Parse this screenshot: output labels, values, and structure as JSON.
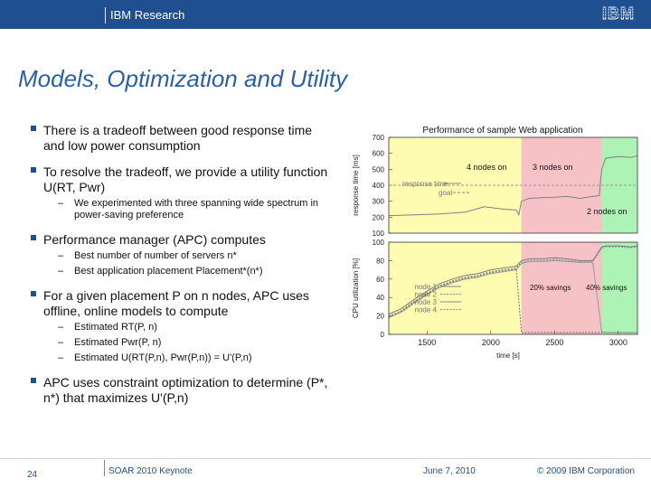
{
  "header": {
    "brand": "IBM Research",
    "logo_text": "IBM"
  },
  "slide": {
    "title": "Models, Optimization and Utility",
    "bullets": [
      {
        "text": "There is a tradeoff between good response time and low power consumption",
        "subs": []
      },
      {
        "text": "To resolve the tradeoff, we provide a utility function U(RT, Pwr)",
        "subs": [
          "We experimented with three spanning wide spectrum in power-saving preference"
        ]
      },
      {
        "text": "Performance manager (APC) computes",
        "subs": [
          "Best number of number of servers n*",
          "Best application placement Placement*(n*)"
        ]
      },
      {
        "text": "For a given placement P on n nodes, APC uses offline, online models to compute",
        "subs": [
          "Estimated RT(P, n)",
          "Estimated Pwr(P, n)",
          "Estimated U(RT(P,n), Pwr(P,n)) = U'(P,n)"
        ]
      },
      {
        "text": "APC uses constraint optimization to determine (P*, n*) that maximizes U'(P,n)",
        "subs": []
      }
    ]
  },
  "chart": {
    "title": "Performance of sample Web application",
    "zone_labels": [
      "4 nodes on",
      "3 nodes on",
      "2 nodes on"
    ],
    "savings_labels": [
      "20% savings",
      "40% savings"
    ],
    "colors": {
      "yellow": "#fdfcb0",
      "red": "#f7c2c6",
      "green": "#aef3b6",
      "line": "#808080"
    }
  },
  "chart_data": [
    {
      "type": "line",
      "ylabel": "response time [ms]",
      "ylim": [
        100,
        700
      ],
      "yticks": [
        "700",
        "600",
        "500",
        "400",
        "300",
        "200",
        "100"
      ],
      "xlim": [
        1200,
        3150
      ],
      "series": [
        {
          "name": "response time",
          "x": [
            1200,
            1400,
            1600,
            1800,
            1950,
            2100,
            2200,
            2220,
            2240,
            2300,
            2400,
            2500,
            2600,
            2700,
            2800,
            2850,
            2870,
            2900,
            3000,
            3100,
            3150
          ],
          "y": [
            210,
            215,
            220,
            232,
            265,
            250,
            245,
            215,
            300,
            318,
            322,
            325,
            330,
            318,
            330,
            335,
            500,
            570,
            580,
            575,
            585
          ]
        },
        {
          "name": "goal",
          "x": [
            1200,
            3150
          ],
          "y": [
            400,
            400
          ]
        }
      ],
      "grid": false,
      "legend": "left"
    },
    {
      "type": "line",
      "xlabel": "time [s]",
      "ylabel": "CPU utilization [%]",
      "ylim": [
        0,
        100
      ],
      "yticks": [
        "100",
        "80",
        "60",
        "40",
        "20",
        "0"
      ],
      "xticks": [
        "1500",
        "2000",
        "2500",
        "3000"
      ],
      "xlim": [
        1200,
        3150
      ],
      "series": [
        {
          "name": "node 1",
          "x": [
            1200,
            1300,
            1400,
            1500,
            1600,
            1700,
            1800,
            1900,
            2000,
            2100,
            2200,
            2240,
            2300,
            2400,
            2500,
            2600,
            2700,
            2800,
            2870,
            2900,
            3000,
            3100,
            3150
          ],
          "y": [
            22,
            28,
            38,
            47,
            55,
            60,
            64,
            66,
            70,
            72,
            74,
            80,
            82,
            82,
            83,
            82,
            80,
            80,
            95,
            96,
            96,
            95,
            96
          ]
        },
        {
          "name": "node 2",
          "x": [
            1200,
            1300,
            1400,
            1500,
            1600,
            1700,
            1800,
            1900,
            2000,
            2100,
            2200,
            2240,
            2300,
            2400,
            2500,
            2600,
            2700,
            2800,
            2870,
            2900,
            3000,
            3100,
            3150
          ],
          "y": [
            20,
            26,
            36,
            45,
            53,
            58,
            62,
            64,
            68,
            70,
            72,
            78,
            80,
            80,
            81,
            80,
            79,
            79,
            93,
            95,
            95,
            94,
            95
          ]
        },
        {
          "name": "node 3",
          "x": [
            1200,
            1300,
            1400,
            1500,
            1600,
            1700,
            1800,
            1900,
            2000,
            2100,
            2200,
            2240,
            2300,
            2400,
            2500,
            2600,
            2700,
            2800,
            2870,
            2900,
            3000,
            3100,
            3150
          ],
          "y": [
            18,
            24,
            34,
            43,
            51,
            56,
            60,
            62,
            66,
            68,
            70,
            77,
            79,
            79,
            80,
            79,
            78,
            78,
            3,
            2,
            2,
            2,
            2
          ]
        },
        {
          "name": "node 4",
          "x": [
            1200,
            1300,
            1400,
            1500,
            1600,
            1700,
            1800,
            1900,
            2000,
            2100,
            2200,
            2240,
            2300,
            2400,
            2500,
            2600,
            2700,
            2800,
            2870,
            2900,
            3000,
            3100,
            3150
          ],
          "y": [
            19,
            25,
            35,
            44,
            52,
            57,
            61,
            63,
            67,
            69,
            71,
            2,
            2,
            2,
            2,
            2,
            2,
            2,
            2,
            2,
            2,
            2,
            2
          ]
        }
      ],
      "grid": false,
      "legend": "left"
    }
  ],
  "footer": {
    "page": "24",
    "event": "SOAR 2010 Keynote",
    "date": "June 7, 2010",
    "copyright": "© 2009 IBM Corporation"
  }
}
